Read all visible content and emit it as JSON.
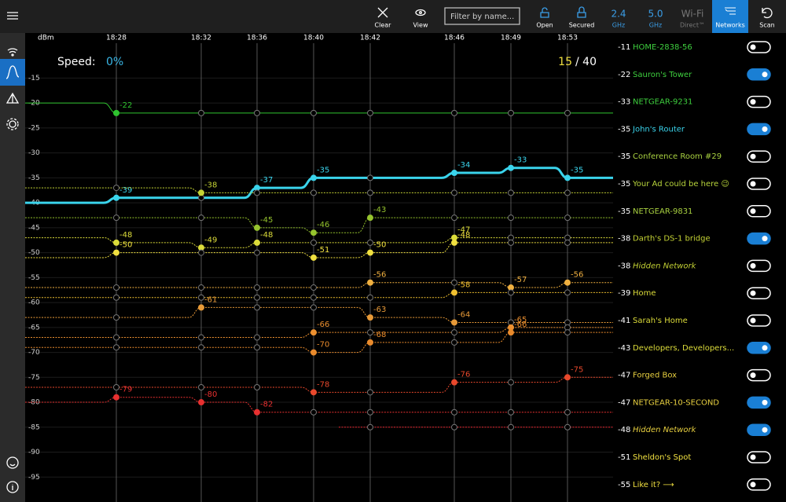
{
  "toolbar": {
    "clear": "Clear",
    "view": "View",
    "filter": "Filter by name...",
    "open": "Open",
    "secured": "Secured",
    "band24": {
      "top": "2.4",
      "bottom": "GHz"
    },
    "band50": {
      "top": "5.0",
      "bottom": "GHz"
    },
    "wifi_direct": {
      "top": "Wi-Fi",
      "bottom": "Direct™"
    },
    "networks": "Networks",
    "scan": "Scan"
  },
  "speed": {
    "label": "Speed:",
    "value": "0%"
  },
  "counter": {
    "shown": "15",
    "total": "/ 40"
  },
  "chart_data": {
    "type": "line",
    "y_label": "dBm",
    "categories": [
      null,
      "18:28",
      "18:32",
      "18:36",
      "18:40",
      "18:42",
      "18:46",
      "18:49",
      "18:53"
    ],
    "ylim": [
      -100,
      -8
    ],
    "yticks": [
      -15,
      -20,
      -25,
      -30,
      -35,
      -40,
      -45,
      -50,
      -55,
      -60,
      -65,
      -70,
      -75,
      -80,
      -85,
      -90,
      -95
    ],
    "grid": true,
    "series": [
      {
        "color": "#2fc42f",
        "style": "solid",
        "values": [
          -20,
          -22,
          -22,
          -22,
          -22,
          -22,
          -22,
          -22,
          -22
        ]
      },
      {
        "color": "#3ad4ec",
        "style": "bold",
        "values": [
          -40,
          -39,
          -39,
          -37,
          -35,
          -35,
          -34,
          -33,
          -35
        ]
      },
      {
        "color": "#c4d234",
        "style": "dotted",
        "values": [
          -37,
          -37,
          -38,
          -38,
          -38,
          -38,
          -38,
          -38,
          -38
        ]
      },
      {
        "color": "#96c42e",
        "style": "dotted",
        "values": [
          -43,
          -43,
          -43,
          -45,
          -46,
          -43,
          -43,
          -43,
          -43
        ]
      },
      {
        "color": "#dcdc3a",
        "style": "dotted",
        "values": [
          -47,
          -48,
          -49,
          -48,
          -48,
          -48,
          -47,
          -47,
          -47
        ]
      },
      {
        "color": "#f0e040",
        "style": "dotted",
        "values": [
          -51,
          -50,
          -50,
          -50,
          -51,
          -50,
          -48,
          -48,
          -48
        ]
      },
      {
        "color": "#f0b040",
        "style": "dotted",
        "values": [
          -57,
          -57,
          -57,
          -57,
          -57,
          -56,
          -56,
          -57,
          -56
        ]
      },
      {
        "color": "#f0c030",
        "style": "dotted",
        "values": [
          -59,
          -59,
          -59,
          -59,
          -59,
          -59,
          -58,
          -58,
          -58
        ]
      },
      {
        "color": "#e89a38",
        "style": "dotted",
        "values": [
          -63,
          -63,
          -61,
          -61,
          -61,
          -63,
          -64,
          -64,
          -64
        ]
      },
      {
        "color": "#ec9030",
        "style": "dotted",
        "values": [
          -67,
          -67,
          -67,
          -67,
          -66,
          -66,
          -66,
          -65,
          -65
        ]
      },
      {
        "color": "#e88a2c",
        "style": "dotted",
        "values": [
          -69,
          -69,
          -69,
          -69,
          -70,
          -68,
          -68,
          -66,
          -66
        ]
      },
      {
        "color": "#e8482c",
        "style": "dotted",
        "values": [
          -77,
          -77,
          -77,
          -77,
          -78,
          -78,
          -76,
          -76,
          -75
        ]
      },
      {
        "color": "#e83030",
        "style": "dotted",
        "values": [
          -80,
          -79,
          -80,
          -82,
          -82,
          -82,
          -82,
          -82,
          -82
        ]
      },
      {
        "color": "#e8202c",
        "style": "dotted",
        "values": [
          null,
          null,
          null,
          null,
          null,
          -85,
          -85,
          -85,
          -85
        ]
      }
    ]
  },
  "networks": [
    {
      "signal": -11,
      "name": "HOME-2838-56",
      "color": "#3ecf3e",
      "italic": false,
      "on": false
    },
    {
      "signal": -22,
      "name": "Sauron's Tower",
      "color": "#3ecf3e",
      "italic": false,
      "on": true
    },
    {
      "signal": -33,
      "name": "NETGEAR-9231",
      "color": "#3ecf3e",
      "italic": false,
      "on": false
    },
    {
      "signal": -35,
      "name": "John's Router",
      "color": "#3ad4ec",
      "italic": false,
      "on": true
    },
    {
      "signal": -35,
      "name": "Conference Room #29",
      "color": "#a8d040",
      "italic": false,
      "on": false
    },
    {
      "signal": -35,
      "name": "Your Ad could be here 😉",
      "color": "#b8d43c",
      "italic": false,
      "on": false
    },
    {
      "signal": -35,
      "name": "NETGEAR-9831",
      "color": "#a8d040",
      "italic": false,
      "on": false
    },
    {
      "signal": -38,
      "name": "Darth's DS-1 bridge",
      "color": "#c4d234",
      "italic": false,
      "on": true
    },
    {
      "signal": -38,
      "name": "Hidden Network",
      "color": "#c4d234",
      "italic": true,
      "on": false
    },
    {
      "signal": -39,
      "name": "Home",
      "color": "#dcdc3a",
      "italic": false,
      "on": false
    },
    {
      "signal": -41,
      "name": "Sarah's Home",
      "color": "#dcdc3a",
      "italic": false,
      "on": false
    },
    {
      "signal": -43,
      "name": "Developers, Developers...",
      "color": "#dcdc3a",
      "italic": false,
      "on": true
    },
    {
      "signal": -47,
      "name": "Forged Box",
      "color": "#e8d040",
      "italic": false,
      "on": false
    },
    {
      "signal": -47,
      "name": "NETGEAR-10-SECOND",
      "color": "#e8d040",
      "italic": false,
      "on": true
    },
    {
      "signal": -48,
      "name": "Hidden Network",
      "color": "#e8d040",
      "italic": true,
      "on": true
    },
    {
      "signal": -51,
      "name": "Sheldon's Spot",
      "color": "#f0e040",
      "italic": false,
      "on": false
    },
    {
      "signal": -55,
      "name": "Like it? ⟶",
      "color": "#f0e040",
      "italic": false,
      "on": false
    }
  ]
}
